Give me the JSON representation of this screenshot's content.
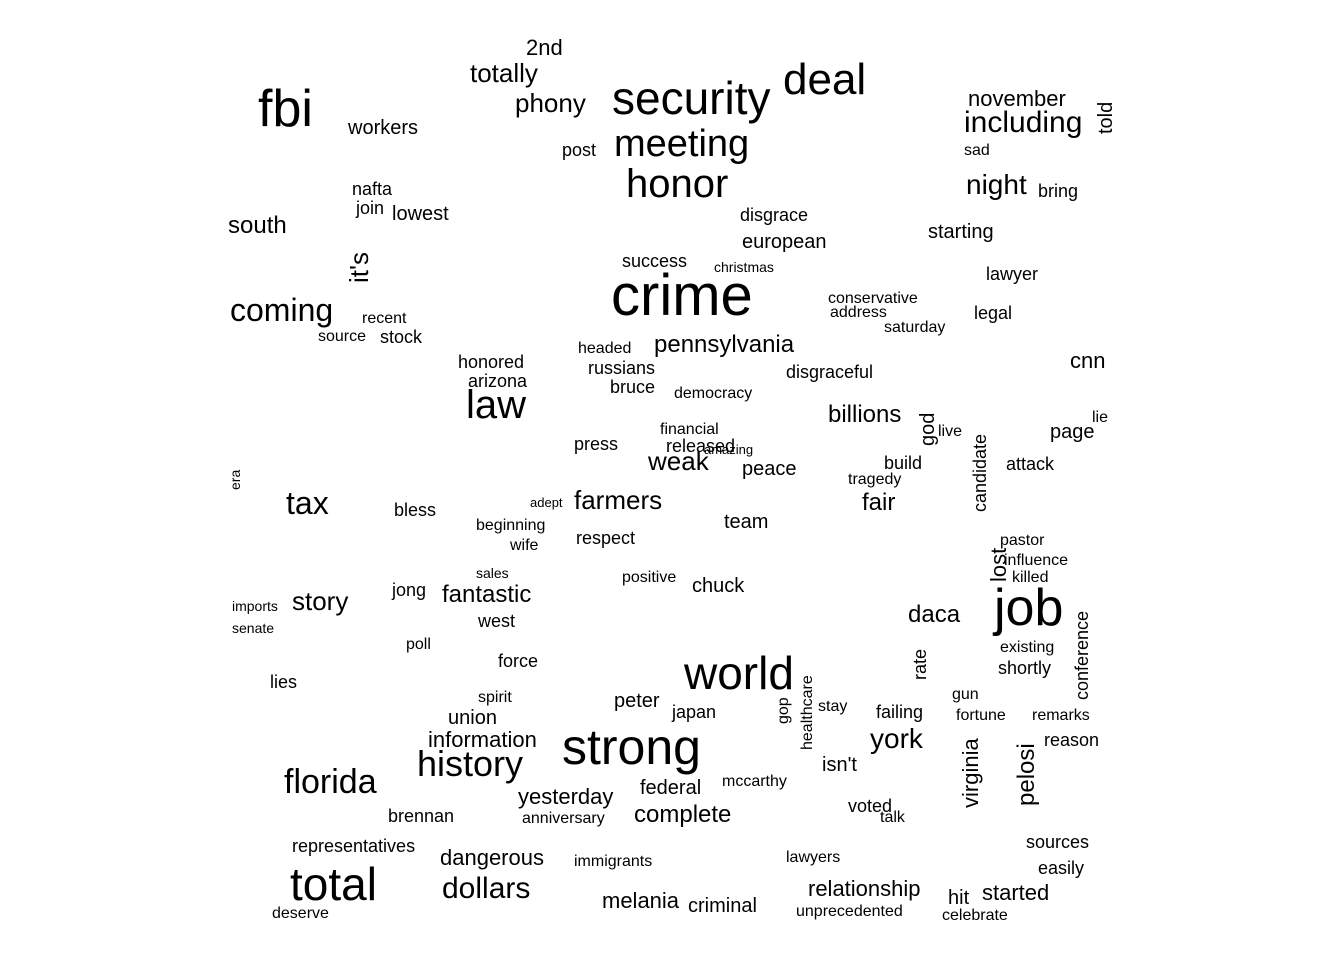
{
  "words": [
    "crime",
    "strong",
    "security",
    "fbi",
    "job",
    "world",
    "deal",
    "total",
    "honor",
    "law",
    "meeting",
    "history",
    "florida",
    "coming",
    "including",
    "dollars",
    "phony",
    "totally",
    "fantastic",
    "farmers",
    "tax",
    "story",
    "night",
    "it's",
    "pennsylvania",
    "complete",
    "york",
    "pelosi",
    "dangerous",
    "information",
    "yesterday",
    "relationship",
    "billions",
    "weak",
    "south",
    "melania",
    "daca",
    "virginia",
    "fair",
    "lost",
    "november",
    "lowest",
    "workers",
    "starting",
    "european",
    "started",
    "criminal",
    "union",
    "cnn",
    "federal",
    "peace",
    "chuck",
    "team",
    "god",
    "released",
    "arizona",
    "isn't",
    "told",
    "respect",
    "voted",
    "peter",
    "nafta",
    "honored",
    "brennan",
    "bless",
    "source",
    "conference",
    "remarks",
    "sources",
    "reason",
    "attack",
    "page",
    "lawyer",
    "join",
    "saturday",
    "christmas",
    "wife",
    "west",
    "positive",
    "press",
    "candidate",
    "conservative",
    "disgraceful",
    "disgrace",
    "build",
    "success",
    "2nd",
    "post",
    "bring",
    "address",
    "legal",
    "stay",
    "failing",
    "easily",
    "representatives",
    "immigrants",
    "anniversary",
    "stock",
    "recent",
    "shortly",
    "jong",
    "poll",
    "force",
    "lies",
    "spirit",
    "bruce",
    "russians",
    "financial",
    "japan",
    "hit",
    "celebrate",
    "deserve",
    "mccarthy",
    "talk",
    "killed",
    "influence",
    "rate",
    "existing",
    "pastor",
    "gun",
    "fortune",
    "healthcare",
    "unprecedented",
    "lawyers",
    "beginning",
    "adept",
    "sales",
    "amazing",
    "democracy",
    "headed",
    "sad",
    "lie",
    "live",
    "era",
    "tragedy",
    "gop",
    "imports",
    "senate"
  ]
}
